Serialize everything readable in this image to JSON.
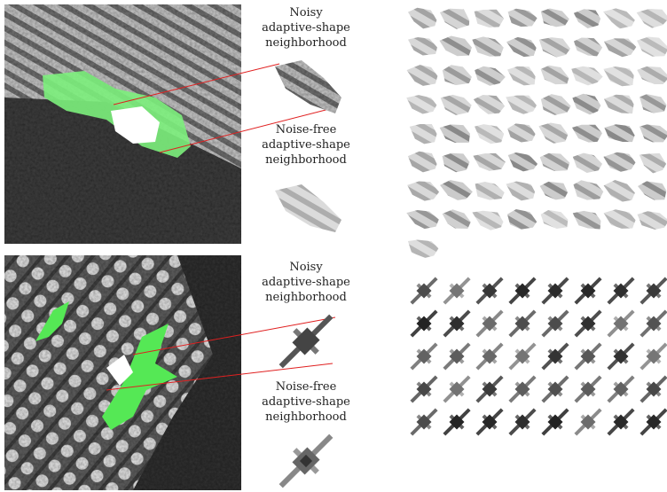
{
  "panels": [
    {
      "noisy_label": {
        "lines": [
          "Noisy",
          "adaptive-shape",
          "neighborhood"
        ]
      },
      "clean_label": {
        "lines": [
          "Noise-free",
          "adaptive-shape",
          "neighborhood"
        ]
      }
    },
    {
      "noisy_label": {
        "lines": [
          "Noisy",
          "adaptive-shape",
          "neighborhood"
        ]
      },
      "clean_label": {
        "lines": [
          "Noise-free",
          "adaptive-shape",
          "neighborhood"
        ]
      }
    }
  ]
}
